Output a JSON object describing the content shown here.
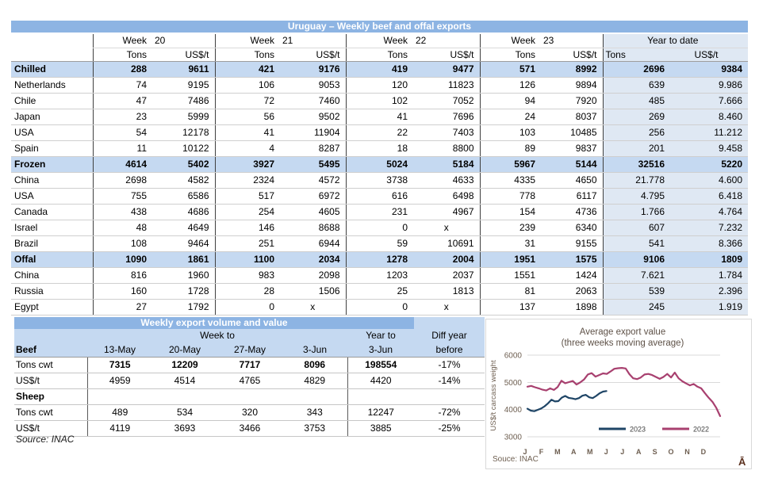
{
  "table1": {
    "title": "Uruguay – Weekly beef and offal exports",
    "week_label": "Week",
    "weeks": [
      "20",
      "21",
      "22",
      "23"
    ],
    "ytd_label": "Year to date",
    "tons_label": "Tons",
    "usdt_label": "US$/t",
    "rows": [
      {
        "label": "Chilled",
        "section": true,
        "cells": [
          "288",
          "9611",
          "421",
          "9176",
          "419",
          "9477",
          "571",
          "8992",
          "2696",
          "9384"
        ]
      },
      {
        "label": "Netherlands",
        "section": false,
        "cells": [
          "74",
          "9195",
          "106",
          "9053",
          "120",
          "11823",
          "126",
          "9894",
          "639",
          "9.986"
        ]
      },
      {
        "label": "Chile",
        "section": false,
        "cells": [
          "47",
          "7486",
          "72",
          "7460",
          "102",
          "7052",
          "94",
          "7920",
          "485",
          "7.666"
        ]
      },
      {
        "label": "Japan",
        "section": false,
        "cells": [
          "23",
          "5999",
          "56",
          "9502",
          "41",
          "7696",
          "24",
          "8037",
          "269",
          "8.460"
        ]
      },
      {
        "label": "USA",
        "section": false,
        "cells": [
          "54",
          "12178",
          "41",
          "11904",
          "22",
          "7403",
          "103",
          "10485",
          "256",
          "11.212"
        ]
      },
      {
        "label": "Spain",
        "section": false,
        "cells": [
          "11",
          "10122",
          "4",
          "8287",
          "18",
          "8800",
          "89",
          "9837",
          "201",
          "9.458"
        ]
      },
      {
        "label": "Frozen",
        "section": true,
        "cells": [
          "4614",
          "5402",
          "3927",
          "5495",
          "5024",
          "5184",
          "5967",
          "5144",
          "32516",
          "5220"
        ]
      },
      {
        "label": "China",
        "section": false,
        "cells": [
          "2698",
          "4582",
          "2324",
          "4572",
          "3738",
          "4633",
          "4335",
          "4650",
          "21.778",
          "4.600"
        ]
      },
      {
        "label": "USA",
        "section": false,
        "cells": [
          "755",
          "6586",
          "517",
          "6972",
          "616",
          "6498",
          "778",
          "6117",
          "4.795",
          "6.418"
        ]
      },
      {
        "label": "Canada",
        "section": false,
        "cells": [
          "438",
          "4686",
          "254",
          "4605",
          "231",
          "4967",
          "154",
          "4736",
          "1.766",
          "4.764"
        ]
      },
      {
        "label": "Israel",
        "section": false,
        "cells": [
          "48",
          "4649",
          "146",
          "8688",
          "0",
          "x",
          "239",
          "6340",
          "607",
          "7.232"
        ]
      },
      {
        "label": "Brazil",
        "section": false,
        "cells": [
          "108",
          "9464",
          "251",
          "6944",
          "59",
          "10691",
          "31",
          "9155",
          "541",
          "8.366"
        ]
      },
      {
        "label": "Offal",
        "section": true,
        "cells": [
          "1090",
          "1861",
          "1100",
          "2034",
          "1278",
          "2004",
          "1951",
          "1575",
          "9106",
          "1809"
        ]
      },
      {
        "label": "China",
        "section": false,
        "cells": [
          "816",
          "1960",
          "983",
          "2098",
          "1203",
          "2037",
          "1551",
          "1424",
          "7.621",
          "1.784"
        ]
      },
      {
        "label": "Russia",
        "section": false,
        "cells": [
          "160",
          "1728",
          "28",
          "1506",
          "25",
          "1813",
          "81",
          "2063",
          "539",
          "2.396"
        ]
      },
      {
        "label": "Egypt",
        "section": false,
        "cells": [
          "27",
          "1792",
          "0",
          "x",
          "0",
          "x",
          "137",
          "1898",
          "245",
          "1.919"
        ]
      }
    ]
  },
  "table2": {
    "title": "Weekly export volume and value",
    "week_to_label": "Week to",
    "year_to_label": "Year to",
    "diff_line1": "Diff year",
    "rows": [
      {
        "label": "Beef",
        "type": "header",
        "cells": [
          "13-May",
          "20-May",
          "27-May",
          "3-Jun",
          "3-Jun",
          "before"
        ]
      },
      {
        "label": "Tons cwt",
        "type": "data-bold",
        "cells": [
          "7315",
          "12209",
          "7717",
          "8096",
          "198554",
          "-17%"
        ]
      },
      {
        "label": "US$/t",
        "type": "data",
        "cells": [
          "4959",
          "4514",
          "4765",
          "4829",
          "4420",
          "-14%"
        ]
      },
      {
        "label": "Sheep",
        "type": "subheader",
        "cells": [
          "",
          "",
          "",
          "",
          "",
          ""
        ]
      },
      {
        "label": "Tons cwt",
        "type": "data",
        "cells": [
          "489",
          "534",
          "320",
          "343",
          "12247",
          "-72%"
        ]
      },
      {
        "label": "US$/t",
        "type": "data",
        "cells": [
          "4119",
          "3693",
          "3466",
          "3753",
          "3885",
          "-25%"
        ]
      }
    ],
    "source": "Source: INAC"
  },
  "chart_data": {
    "type": "line",
    "title": "Average export  value",
    "subtitle": "(three weeks moving average)",
    "ylabel": "US$/t carcass weight",
    "ylim": [
      3000,
      6000
    ],
    "yticks": [
      3000,
      4000,
      5000,
      6000
    ],
    "x_axis_months": [
      "J",
      "F",
      "M",
      "A",
      "M",
      "J",
      "J",
      "A",
      "S",
      "O",
      "N",
      "D"
    ],
    "grid": true,
    "legend_position": "inside-bottom",
    "source": "Souce: INAC",
    "corner_glyph": "Ā",
    "series": [
      {
        "name": "2023",
        "color": "#1F4566",
        "span": [
          0,
          0.41
        ],
        "values": [
          4030,
          3960,
          3940,
          3990,
          4040,
          4120,
          4230,
          4360,
          4300,
          4310,
          4440,
          4500,
          4430,
          4410,
          4380,
          4420,
          4510,
          4540,
          4450,
          4420,
          4500,
          4600,
          4660,
          4680
        ]
      },
      {
        "name": "2022",
        "color": "#A8406F",
        "span": [
          0,
          1
        ],
        "values": [
          4840,
          4870,
          4820,
          4780,
          4730,
          4700,
          4780,
          4720,
          4830,
          5060,
          4970,
          5010,
          5050,
          4920,
          5000,
          5110,
          5290,
          5340,
          5210,
          5270,
          5330,
          5310,
          5400,
          5500,
          5520,
          5530,
          5510,
          5300,
          5150,
          5120,
          5180,
          5290,
          5310,
          5270,
          5200,
          5130,
          5200,
          5310,
          5180,
          5360,
          5150,
          5040,
          4960,
          4890,
          4940,
          4840,
          4780,
          4600,
          4430,
          4280,
          4060,
          3760
        ]
      }
    ]
  }
}
